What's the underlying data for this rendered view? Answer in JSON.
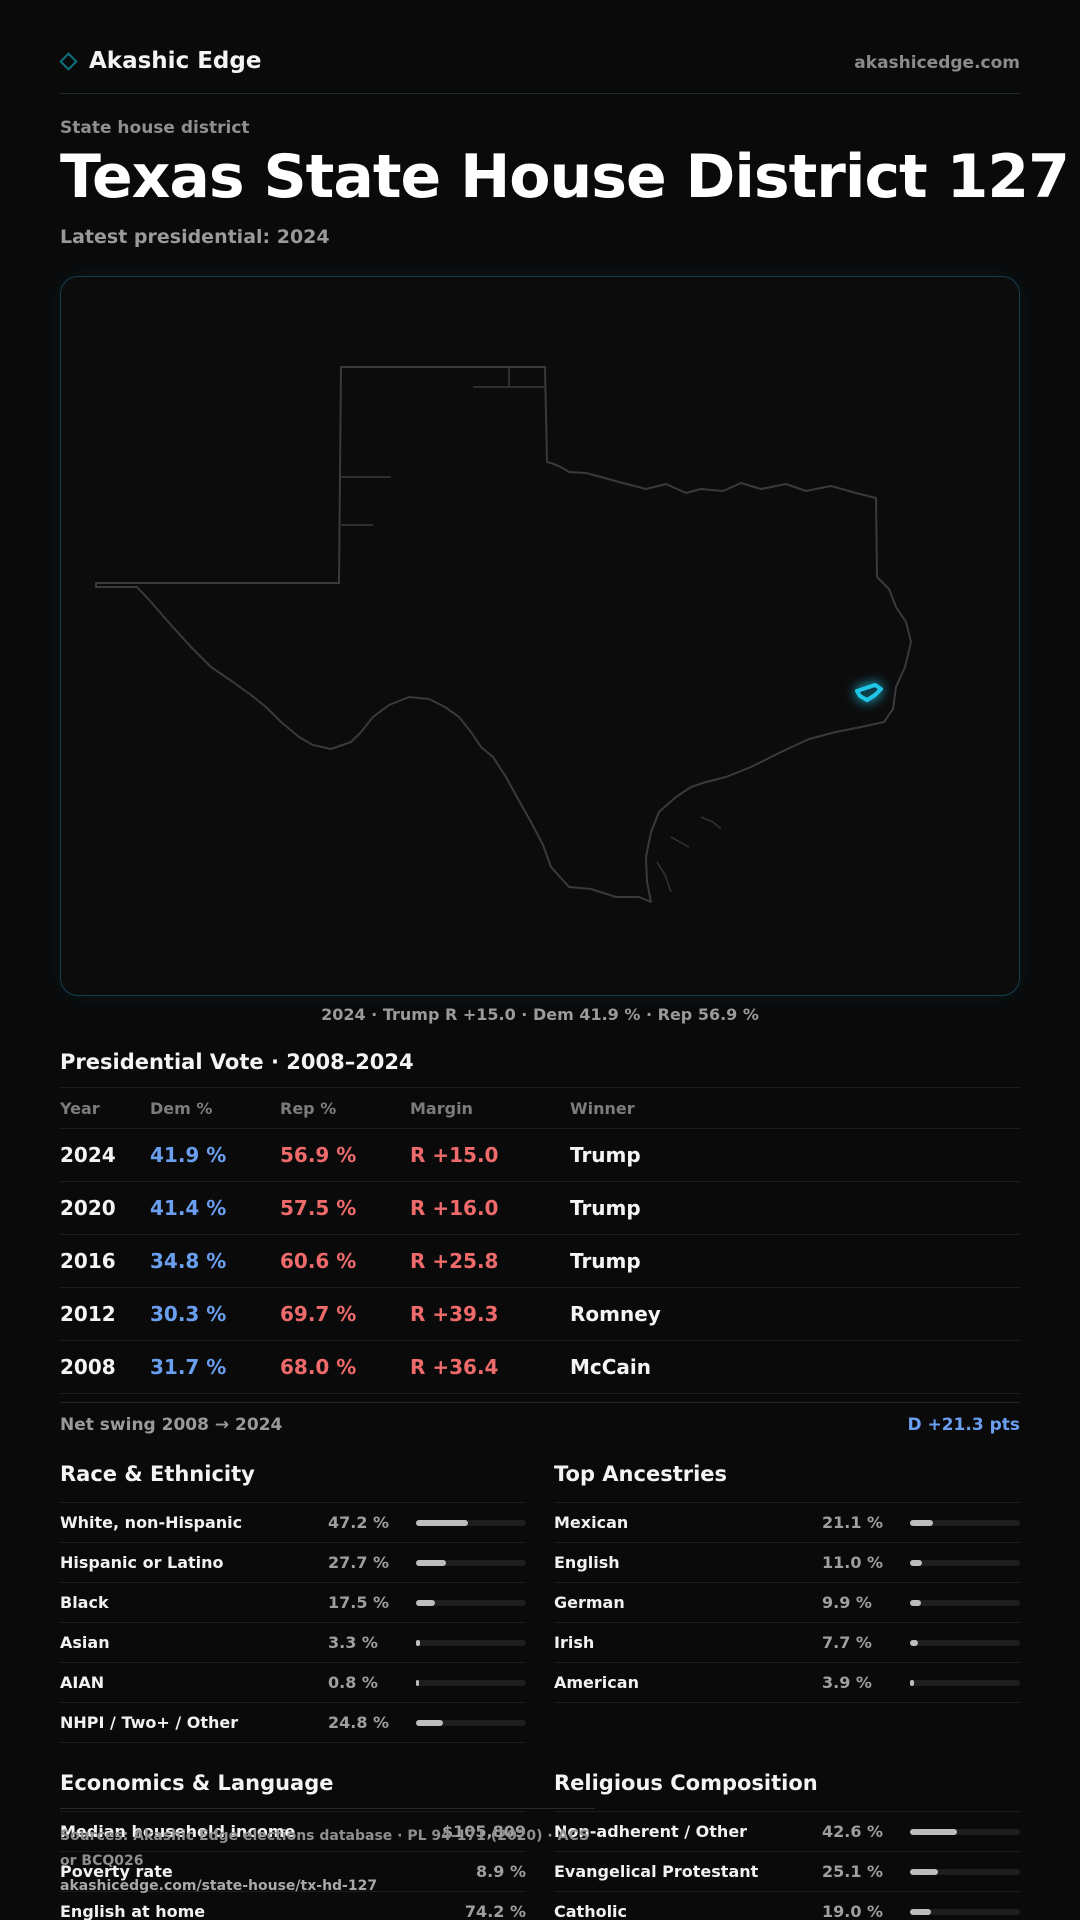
{
  "header": {
    "brand_name": "Akashic Edge",
    "site_url": "akashicedge.com",
    "accent_color": "#0e6f7d"
  },
  "page": {
    "kicker": "State house district",
    "title": "Texas  State House District 127",
    "subtitle": "Latest presidential: 2024"
  },
  "map": {
    "caption": "2024 · Trump R +15.0 · Dem 41.9 % · Rep 56.9 %",
    "highlight_color": "#1fc8e8"
  },
  "vote": {
    "title": "Presidential Vote · 2008–2024",
    "columns": [
      "Year",
      "Dem %",
      "Rep %",
      "Margin",
      "Winner"
    ],
    "rows": [
      {
        "year": "2024",
        "dem": "41.9 %",
        "rep": "56.9 %",
        "margin": "R +15.0",
        "winner": "Trump"
      },
      {
        "year": "2020",
        "dem": "41.4 %",
        "rep": "57.5 %",
        "margin": "R +16.0",
        "winner": "Trump"
      },
      {
        "year": "2016",
        "dem": "34.8 %",
        "rep": "60.6 %",
        "margin": "R +25.8",
        "winner": "Trump"
      },
      {
        "year": "2012",
        "dem": "30.3 %",
        "rep": "69.7 %",
        "margin": "R +39.3",
        "winner": "Romney"
      },
      {
        "year": "2008",
        "dem": "31.7 %",
        "rep": "68.0 %",
        "margin": "R +36.4",
        "winner": "McCain"
      }
    ],
    "swing_label": "Net swing 2008 → 2024",
    "swing_value": "D +21.3 pts"
  },
  "race": {
    "title": "Race & Ethnicity",
    "items": [
      {
        "label": "White, non-Hispanic",
        "value": "47.2 %",
        "pct": 47.2
      },
      {
        "label": "Hispanic or Latino",
        "value": "27.7 %",
        "pct": 27.7
      },
      {
        "label": "Black",
        "value": "17.5 %",
        "pct": 17.5
      },
      {
        "label": "Asian",
        "value": "3.3 %",
        "pct": 3.3
      },
      {
        "label": "AIAN",
        "value": "0.8 %",
        "pct": 0.8
      },
      {
        "label": "NHPI / Two+ / Other",
        "value": "24.8 %",
        "pct": 24.8
      }
    ]
  },
  "ancestry": {
    "title": "Top Ancestries",
    "items": [
      {
        "label": "Mexican",
        "value": "21.1 %",
        "pct": 21.1
      },
      {
        "label": "English",
        "value": "11.0 %",
        "pct": 11.0
      },
      {
        "label": "German",
        "value": "9.9 %",
        "pct": 9.9
      },
      {
        "label": "Irish",
        "value": "7.7 %",
        "pct": 7.7
      },
      {
        "label": "American",
        "value": "3.9 %",
        "pct": 3.9
      }
    ]
  },
  "economics": {
    "title": "Economics & Language",
    "items": [
      {
        "label": "Median household income",
        "value": "$105,809"
      },
      {
        "label": "Poverty rate",
        "value": "8.9 %"
      },
      {
        "label": "English at home",
        "value": "74.2 %"
      }
    ]
  },
  "religion": {
    "title": "Religious Composition",
    "items": [
      {
        "label": "Non-adherent / Other",
        "value": "42.6 %",
        "pct": 42.6
      },
      {
        "label": "Evangelical Protestant",
        "value": "25.1 %",
        "pct": 25.1
      },
      {
        "label": "Catholic",
        "value": "19.0 %",
        "pct": 19.0
      }
    ]
  },
  "footer": {
    "source": "Sources: Akashic Edge elections database · PL 94-171 (2020) · ACS or BCQ026",
    "url": "akashicedge.com/state-house/tx-hd-127"
  }
}
